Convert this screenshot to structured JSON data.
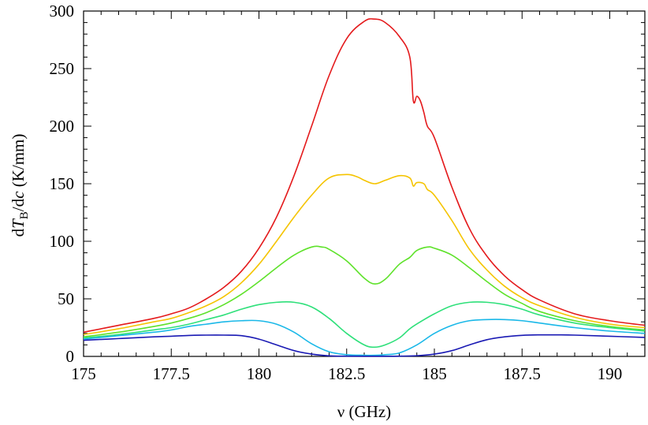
{
  "chart_data": {
    "type": "line",
    "xlabel": "ν (GHz)",
    "ylabel": "dT_B/dc (K/mm)",
    "ylabel_parts": {
      "d": "d",
      "T": "T",
      "sub": "B",
      "slash": "/d",
      "c": "c",
      "unit": " (K/mm)"
    },
    "xlim": [
      175,
      191
    ],
    "ylim": [
      0,
      300
    ],
    "xticks": [
      175,
      177.5,
      180,
      182.5,
      185,
      187.5,
      190
    ],
    "xtick_labels": [
      "175",
      "177.5",
      "180",
      "182.5",
      "185",
      "187.5",
      "190"
    ],
    "yticks": [
      0,
      50,
      100,
      150,
      200,
      250,
      300
    ],
    "ytick_labels": [
      "0",
      "50",
      "100",
      "150",
      "200",
      "250",
      "300"
    ],
    "x_minor_step": 0.5,
    "y_minor_step": 10,
    "grid": false,
    "legend": "none",
    "series": [
      {
        "color": "#e41a1c",
        "x": [
          175,
          176,
          177,
          177.5,
          178,
          178.5,
          179,
          179.5,
          180,
          180.5,
          181,
          181.5,
          182,
          182.5,
          183,
          183.3,
          183.6,
          184,
          184.3,
          184.4,
          184.5,
          184.6,
          184.7,
          184.8,
          185,
          185.5,
          186,
          186.5,
          187,
          187.5,
          188,
          189,
          190,
          191
        ],
        "y": [
          21,
          27,
          33,
          37,
          42,
          50,
          60,
          74,
          94,
          121,
          157,
          200,
          244,
          276,
          291,
          293,
          290,
          278,
          260,
          222,
          226,
          222,
          212,
          200,
          190,
          147,
          111,
          87,
          70,
          58,
          49,
          37,
          31,
          27
        ]
      },
      {
        "color": "#f5c400",
        "x": [
          175,
          176,
          177,
          177.5,
          178,
          178.5,
          179,
          179.5,
          180,
          180.5,
          181,
          181.5,
          182,
          182.5,
          182.8,
          183,
          183.3,
          183.6,
          184,
          184.3,
          184.4,
          184.5,
          184.7,
          184.8,
          185,
          185.5,
          186,
          186.5,
          187,
          187.5,
          188,
          189,
          190,
          191
        ],
        "y": [
          19,
          24,
          30,
          33,
          38,
          44,
          52,
          64,
          80,
          100,
          121,
          140,
          155,
          158,
          156,
          153,
          150,
          153,
          157,
          155,
          148,
          151,
          150,
          145,
          140,
          118,
          93,
          75,
          61,
          51,
          44,
          34,
          28,
          25
        ]
      },
      {
        "color": "#5ee22a",
        "x": [
          175,
          176,
          177,
          177.5,
          178,
          178.5,
          179,
          179.5,
          180,
          180.5,
          181,
          181.5,
          181.8,
          182,
          182.5,
          183,
          183.3,
          183.6,
          184,
          184.3,
          184.5,
          184.8,
          185,
          185.5,
          186,
          186.5,
          187,
          187.5,
          188,
          189,
          190,
          191
        ],
        "y": [
          17,
          21,
          26,
          29,
          33,
          38,
          45,
          54,
          65,
          77,
          88,
          95,
          95,
          93,
          83,
          68,
          63,
          67,
          80,
          86,
          92,
          95,
          94,
          88,
          77,
          65,
          54,
          46,
          39,
          31,
          26,
          23
        ]
      },
      {
        "color": "#2ee07a",
        "x": [
          175,
          176,
          177,
          177.5,
          178,
          178.5,
          179,
          179.5,
          180,
          180.5,
          181,
          181.5,
          182,
          182.5,
          183,
          183.3,
          183.6,
          184,
          184.3,
          184.6,
          185,
          185.5,
          186,
          186.5,
          187,
          187.5,
          188,
          189,
          190,
          191
        ],
        "y": [
          16,
          19,
          23,
          25,
          28,
          32,
          36,
          41,
          45,
          47,
          47,
          43,
          33,
          20,
          10,
          8,
          10,
          16,
          24,
          30,
          37,
          44,
          47,
          47,
          45,
          41,
          36,
          29,
          25,
          22
        ]
      },
      {
        "color": "#1ab8e8",
        "x": [
          175,
          176,
          177,
          177.5,
          178,
          178.5,
          179,
          179.5,
          180,
          180.5,
          181,
          181.5,
          182,
          182.5,
          183,
          183.3,
          183.6,
          184,
          184.5,
          185,
          185.5,
          186,
          186.5,
          187,
          187.5,
          188,
          189,
          190,
          191
        ],
        "y": [
          15,
          18,
          21,
          23,
          26,
          28,
          30,
          31,
          31,
          28,
          21,
          11,
          4,
          1.5,
          1,
          1,
          1.5,
          3,
          10,
          20,
          27,
          31,
          32,
          32,
          31,
          29,
          25,
          22,
          20
        ]
      },
      {
        "color": "#1a1ab4",
        "x": [
          175,
          176,
          177,
          177.5,
          178,
          178.5,
          179,
          179.5,
          180,
          180.5,
          181,
          181.5,
          182,
          182.5,
          183,
          183.3,
          183.6,
          184,
          184.5,
          185,
          185.5,
          186,
          186.5,
          187,
          187.5,
          188,
          188.5,
          189,
          190,
          191
        ],
        "y": [
          14,
          15.5,
          17,
          17.5,
          18.2,
          18.5,
          18.5,
          18,
          15,
          10,
          5,
          2,
          0.5,
          0.2,
          0.1,
          0.1,
          0.1,
          0.2,
          0.6,
          2,
          5,
          10,
          14.5,
          17,
          18.3,
          18.7,
          18.7,
          18.5,
          17.5,
          16.5
        ]
      }
    ]
  }
}
